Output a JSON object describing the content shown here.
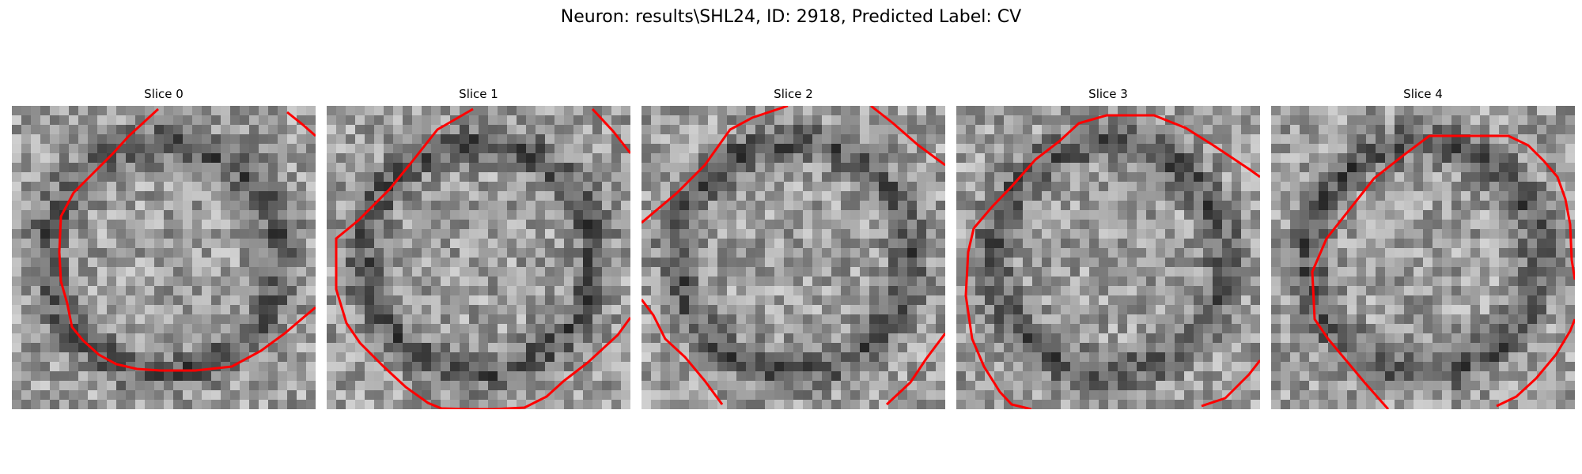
{
  "figure": {
    "title": "Neuron: results\\SHL24, ID: 2918, Predicted Label: CV"
  },
  "colors": {
    "background": "#ffffff",
    "contour": "#ff0000",
    "image_colormap": "gray"
  },
  "panels": [
    {
      "title": "Slice 0"
    },
    {
      "title": "Slice 1"
    },
    {
      "title": "Slice 2"
    },
    {
      "title": "Slice 3"
    },
    {
      "title": "Slice 4"
    }
  ]
}
